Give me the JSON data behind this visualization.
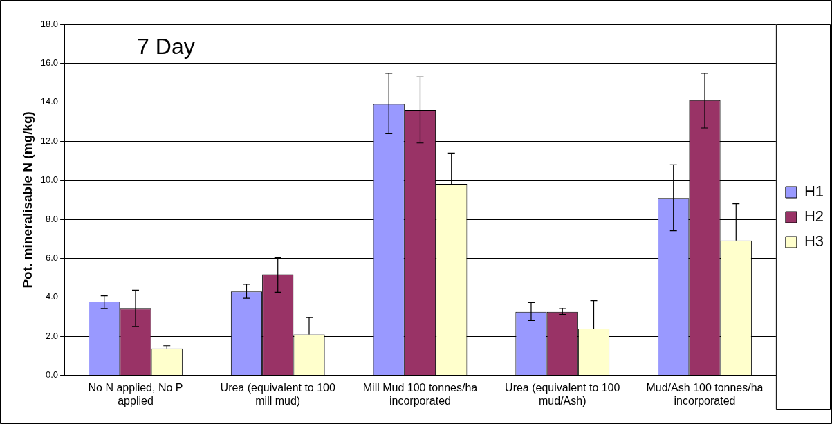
{
  "chart_data": {
    "type": "bar",
    "title": "7 Day",
    "ylabel": "Pot. mineralisable N (mg/kg)",
    "categories": [
      "No N applied, No P applied",
      "Urea (equivalent to 100 mill mud)",
      "Mill Mud 100 tonnes/ha incorporated",
      "Urea (equivalent to 100 mud/Ash)",
      "Mud/Ash 100 tonnes/ha incorporated"
    ],
    "series": [
      {
        "name": "H1",
        "color": "#9999ff",
        "values": [
          3.78,
          4.3,
          13.9,
          3.26,
          9.09
        ],
        "errors": [
          [
            3.42,
            4.08
          ],
          [
            3.95,
            4.67
          ],
          [
            12.38,
            15.49
          ],
          [
            2.81,
            3.73
          ],
          [
            7.41,
            10.79
          ]
        ]
      },
      {
        "name": "H2",
        "color": "#993366",
        "values": [
          3.42,
          5.18,
          13.6,
          3.26,
          14.11
        ],
        "errors": [
          [
            2.5,
            4.37
          ],
          [
            4.26,
            6.03
          ],
          [
            11.91,
            15.29
          ],
          [
            3.12,
            3.43
          ],
          [
            12.68,
            15.49
          ]
        ]
      },
      {
        "name": "H3",
        "color": "#ffffcc",
        "values": [
          1.38,
          2.1,
          9.81,
          2.4,
          6.91
        ],
        "errors": [
          [
            1.38,
            1.52
          ],
          [
            2.1,
            2.96
          ],
          [
            9.81,
            11.39
          ],
          [
            2.4,
            3.83
          ],
          [
            6.91,
            8.79
          ]
        ]
      }
    ],
    "ylim": [
      0,
      18
    ],
    "yticks": [
      {
        "value": 0,
        "label": "0.0"
      },
      {
        "value": 2,
        "label": "2.0"
      },
      {
        "value": 4,
        "label": "4.0"
      },
      {
        "value": 6,
        "label": "6.0"
      },
      {
        "value": 8,
        "label": "8.0"
      },
      {
        "value": 10,
        "label": "10.0"
      },
      {
        "value": 12,
        "label": "12.0"
      },
      {
        "value": 14,
        "label": "14.0"
      },
      {
        "value": 16,
        "label": "16.0"
      },
      {
        "value": 18,
        "label": "18.0"
      }
    ],
    "grid": "y",
    "legend": "right"
  }
}
